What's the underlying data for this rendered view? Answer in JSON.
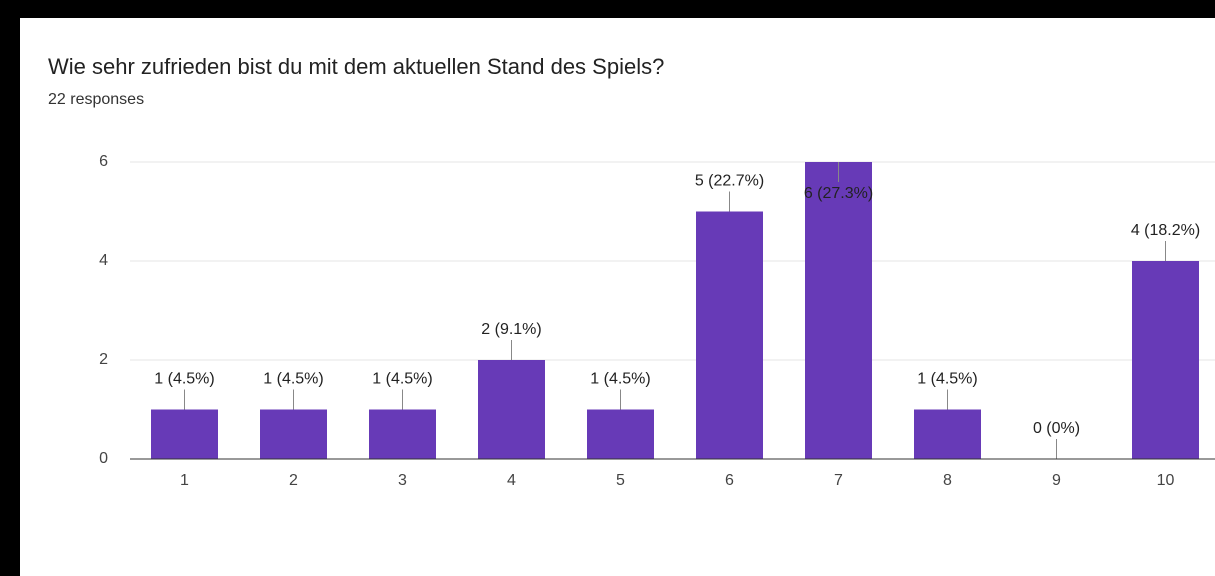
{
  "chart_data": {
    "type": "bar",
    "title": "Wie sehr zufrieden bist du mit dem aktuellen Stand des Spiels?",
    "subtitle": "22 responses",
    "categories": [
      "1",
      "2",
      "3",
      "4",
      "5",
      "6",
      "7",
      "8",
      "9",
      "10"
    ],
    "values": [
      1,
      1,
      1,
      2,
      1,
      5,
      6,
      1,
      0,
      4
    ],
    "value_labels": [
      "1 (4.5%)",
      "1 (4.5%)",
      "1 (4.5%)",
      "2 (9.1%)",
      "1 (4.5%)",
      "5 (22.7%)",
      "6 (27.3%)",
      "1 (4.5%)",
      "0 (0%)",
      "4 (18.2%)"
    ],
    "color": "#673ab7",
    "ylim": [
      0,
      6
    ],
    "yticks": [
      0,
      2,
      4,
      6
    ],
    "grid": true
  }
}
